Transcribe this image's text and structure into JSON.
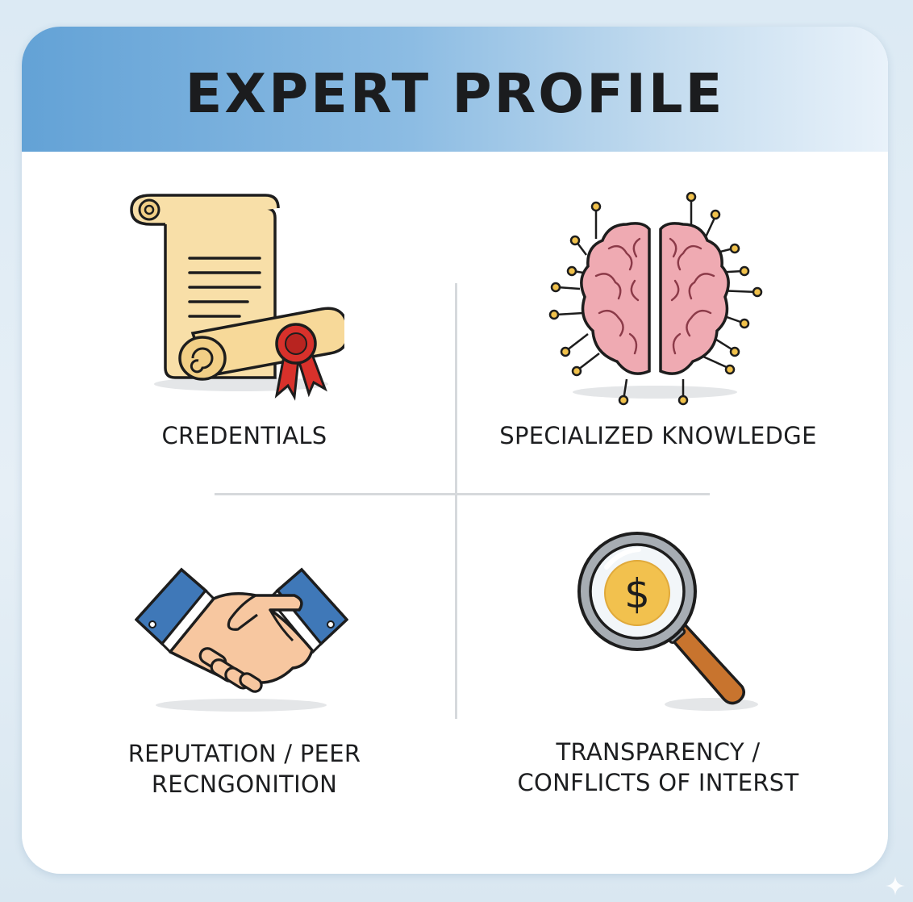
{
  "title": "EXPERT PROFILE",
  "cells": [
    {
      "label": "CREDENTIALS",
      "icon": "diploma-scroll-icon"
    },
    {
      "label": "SPECIALIZED KNOWLEDGE",
      "icon": "brain-circuit-icon"
    },
    {
      "label_line1": "REPUTATION / PEER",
      "label_line2": "RECNGONITION",
      "icon": "handshake-icon"
    },
    {
      "label_line1": "TRANSPARENCY /",
      "label_line2": "CONFLICTS OF INTERST",
      "icon": "magnifier-dollar-icon",
      "symbol": "$"
    }
  ],
  "colors": {
    "header_accent": "#63a2d6",
    "paper": "#f8dfa8",
    "seal": "#d8312b",
    "brain": "#efaab2",
    "sleeve": "#3f78b8",
    "skin": "#f7c7a0",
    "coin": "#f2c14e",
    "handle": "#c8742e"
  }
}
